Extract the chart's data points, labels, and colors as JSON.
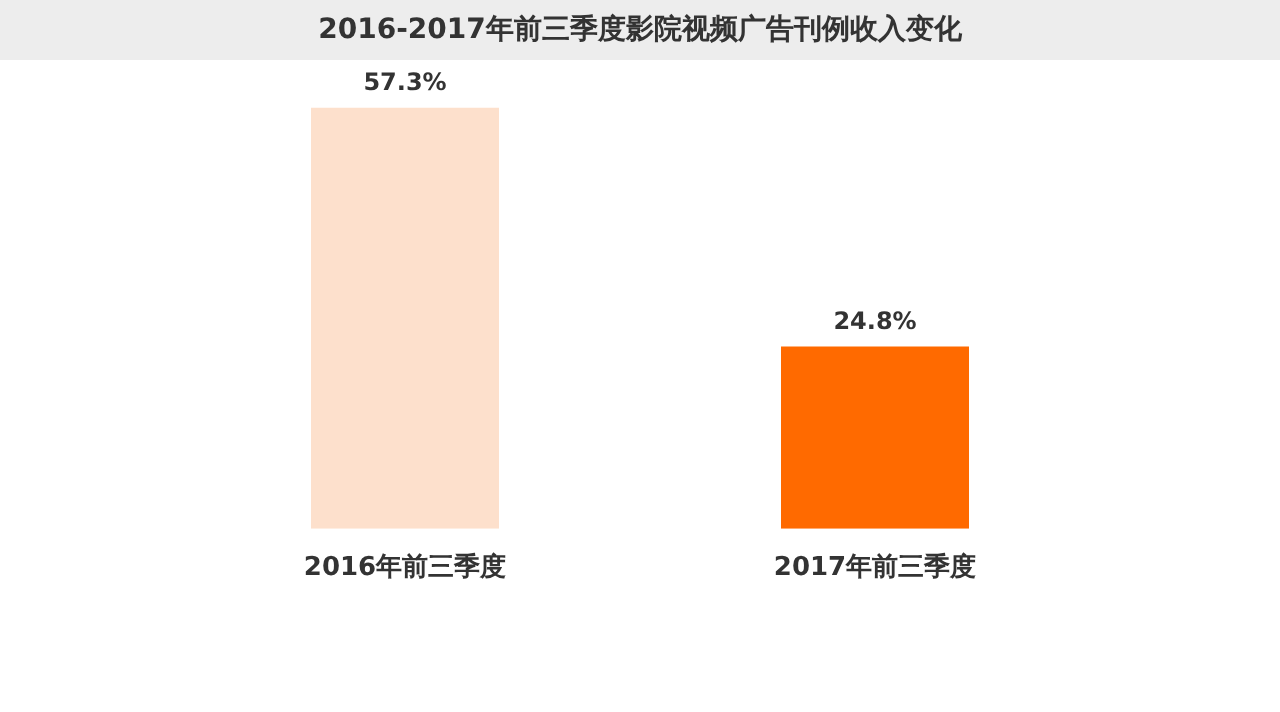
{
  "chart_data": {
    "type": "bar",
    "title": "2016-2017年前三季度影院视频广告刊例收入变化",
    "categories": [
      "2016年前三季度",
      "2017年前三季度"
    ],
    "values": [
      57.3,
      24.8
    ],
    "colors": [
      "#fde0cc",
      "#ff6a00"
    ],
    "value_labels": [
      "57.3%",
      "24.8%"
    ],
    "tick_labels": "x",
    "grid": false,
    "legend": false
  }
}
